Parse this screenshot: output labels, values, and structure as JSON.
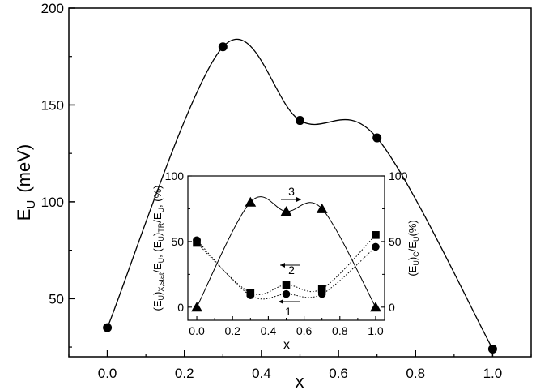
{
  "chart_data": [
    {
      "type": "line",
      "xlabel": "x",
      "ylabel_main": "E",
      "ylabel_sub": "U",
      "ylabel_unit": "(meV)",
      "xlim": [
        -0.1,
        1.1
      ],
      "ylim": [
        20,
        200
      ],
      "xticks": [
        "0.0",
        "0.2",
        "0.4",
        "0.6",
        "0.8",
        "1.0"
      ],
      "yticks": [
        "50",
        "100",
        "150",
        "200"
      ],
      "series": [
        {
          "x": [
            0.0,
            0.3,
            0.5,
            0.7,
            1.0
          ],
          "y": [
            35,
            180,
            142,
            133,
            24
          ],
          "marker": "circle",
          "line": "solid"
        }
      ]
    },
    {
      "type": "line",
      "xlabel": "x",
      "xlim": [
        -0.05,
        1.05
      ],
      "ylim": [
        -10,
        100
      ],
      "xticks": [
        "0.0",
        "0.2",
        "0.4",
        "0.6",
        "0.8",
        "1.0"
      ],
      "yticks_left": [
        "0",
        "50",
        "100"
      ],
      "yticks_right": [
        "0",
        "50",
        "100"
      ],
      "ylabel_left": "(E_U)_X,stat/E_U, (E_U)_TR/E_U, (%)",
      "ylabel_right": "(E_U)_C/E_U(%)",
      "annotations": [
        "1",
        "2",
        "3"
      ],
      "series": [
        {
          "label": "1",
          "x": [
            0.0,
            0.3,
            0.5,
            0.7,
            1.0
          ],
          "y": [
            51,
            9,
            10,
            10,
            46
          ],
          "marker": "circle",
          "line": "dotted"
        },
        {
          "label": "2",
          "x": [
            0.0,
            0.3,
            0.5,
            0.7,
            1.0
          ],
          "y": [
            49,
            11,
            17,
            14,
            55
          ],
          "marker": "square",
          "line": "dotted"
        },
        {
          "label": "3",
          "x": [
            0.0,
            0.3,
            0.5,
            0.7,
            1.0
          ],
          "y": [
            0,
            80,
            73,
            75,
            0
          ],
          "marker": "triangle",
          "line": "solid"
        }
      ]
    }
  ]
}
